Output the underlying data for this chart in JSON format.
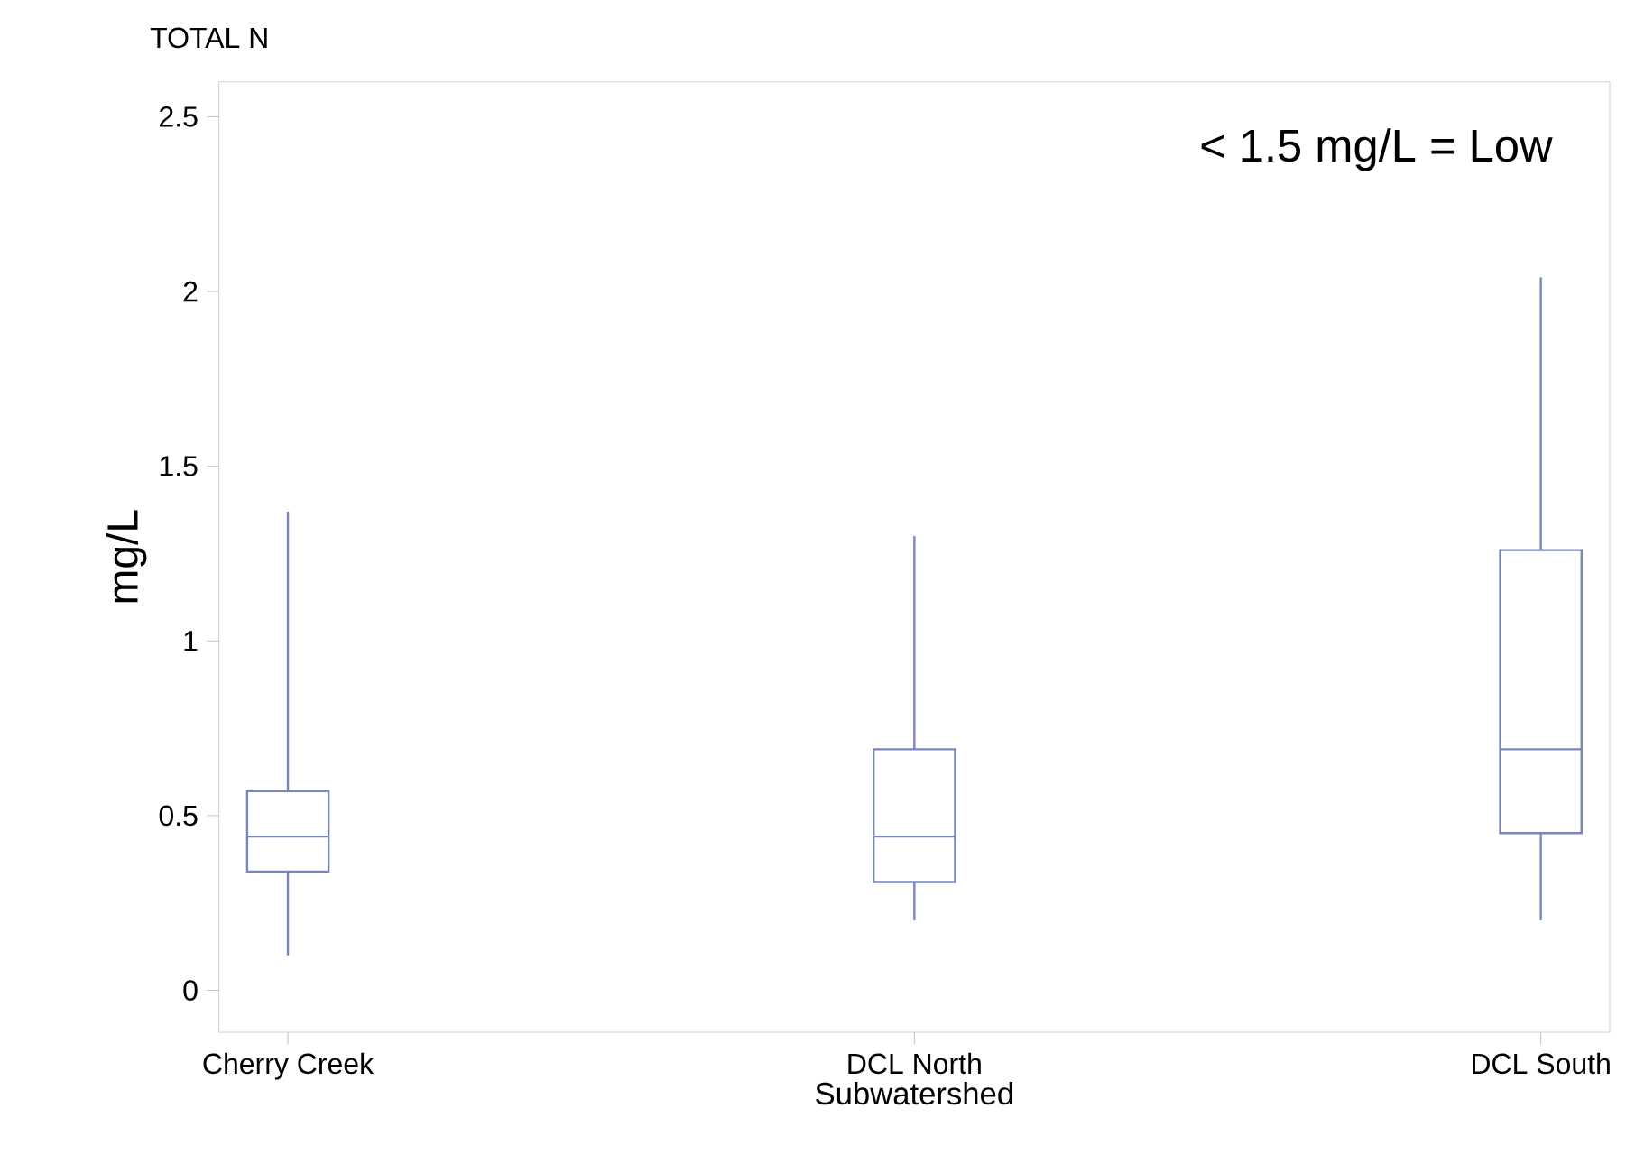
{
  "chart_data": {
    "type": "box",
    "title": "TOTAL N",
    "xlabel": "Subwatershed",
    "ylabel": "mg/L",
    "categories": [
      "Cherry Creek",
      "DCL North",
      "DCL South"
    ],
    "boxes": [
      {
        "low": 0.1,
        "q1": 0.34,
        "median": 0.44,
        "q3": 0.57,
        "high": 1.37
      },
      {
        "low": 0.2,
        "q1": 0.31,
        "median": 0.44,
        "q3": 0.69,
        "high": 1.3
      },
      {
        "low": 0.2,
        "q1": 0.45,
        "median": 0.69,
        "q3": 1.26,
        "high": 2.04
      }
    ],
    "color": "#7a86b8",
    "ylim": [
      -0.12,
      2.6
    ],
    "yticks": [
      0,
      0.5,
      1,
      1.5,
      2,
      2.5
    ],
    "annotations": [
      "< 1.5 mg/L = Low"
    ]
  }
}
